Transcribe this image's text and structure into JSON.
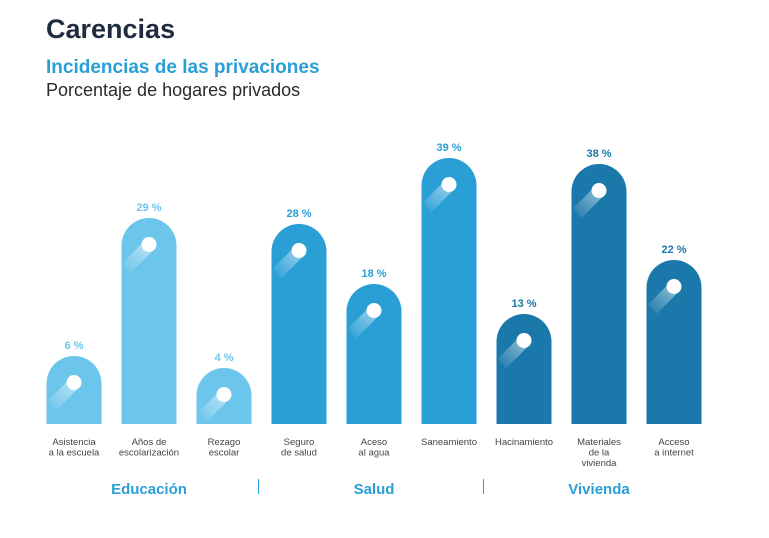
{
  "header": {
    "title": "Carencias",
    "subtitle": "Incidencias de las privaciones",
    "description": "Porcentaje de hogares privados"
  },
  "colors": {
    "title": "#1f2b3e",
    "accent": "#2a9fd6",
    "Educación": "#6cc5ea",
    "Salud": "#2a9fd6",
    "Vivienda": "#1b78aa",
    "label": "#444444",
    "separator": "#2a9fd6"
  },
  "chart_data": {
    "type": "bar",
    "title": "Incidencias de las privaciones",
    "ylabel": "Porcentaje de hogares privados",
    "ylim": [
      0,
      40
    ],
    "value_suffix": " %",
    "categories": [
      [
        "Asistencia",
        "a la escuela"
      ],
      [
        "Años de",
        "escolarización"
      ],
      [
        "Rezago",
        "escolar"
      ],
      [
        "Seguro",
        "de salud"
      ],
      [
        "Aceso",
        "al agua"
      ],
      [
        "Saneamiento"
      ],
      [
        "Hacinamiento"
      ],
      [
        "Materiales",
        "de la",
        "vivienda"
      ],
      [
        "Acceso",
        "a internet"
      ]
    ],
    "values": [
      6,
      29,
      4,
      28,
      18,
      39,
      13,
      38,
      22
    ],
    "groups": [
      {
        "name": "Educación",
        "count": 3
      },
      {
        "name": "Salud",
        "count": 3
      },
      {
        "name": "Vivienda",
        "count": 3
      }
    ]
  }
}
